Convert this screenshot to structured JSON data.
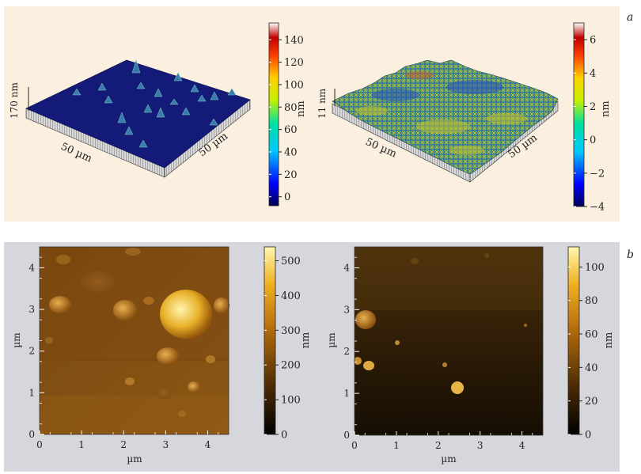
{
  "panel_labels": {
    "a": "a",
    "b": "b"
  },
  "panel_a": {
    "left": {
      "z_label": "170 nm",
      "axis_x": "50 µm",
      "axis_y": "50 µm",
      "colorbar": {
        "unit": "nm",
        "ticks": [
          "0",
          "20",
          "40",
          "60",
          "80",
          "100",
          "120",
          "140"
        ],
        "min": -8,
        "max": 155
      },
      "surface_color": "#141a78"
    },
    "right": {
      "z_label": "11 nm",
      "axis_x": "50 µm",
      "axis_y": "50 µm",
      "colorbar": {
        "unit": "nm",
        "ticks": [
          "−4",
          "−2",
          "0",
          "2",
          "4",
          "6"
        ],
        "min": -4,
        "max": 7
      }
    }
  },
  "panel_b": {
    "left": {
      "xlabel": "µm",
      "ylabel": "µm",
      "x_ticks": [
        "0",
        "1",
        "2",
        "3",
        "4"
      ],
      "y_ticks": [
        "0",
        "1",
        "2",
        "3",
        "4"
      ],
      "colorbar": {
        "unit": "nm",
        "ticks": [
          "0",
          "100",
          "200",
          "300",
          "400",
          "500"
        ],
        "min": 0,
        "max": 540
      }
    },
    "right": {
      "xlabel": "µm",
      "ylabel": "µm",
      "x_ticks": [
        "0",
        "1",
        "2",
        "3",
        "4"
      ],
      "y_ticks": [
        "0",
        "1",
        "2",
        "3",
        "4"
      ],
      "colorbar": {
        "unit": "nm",
        "ticks": [
          "0",
          "20",
          "40",
          "60",
          "80",
          "100"
        ],
        "min": 0,
        "max": 112
      }
    }
  }
}
